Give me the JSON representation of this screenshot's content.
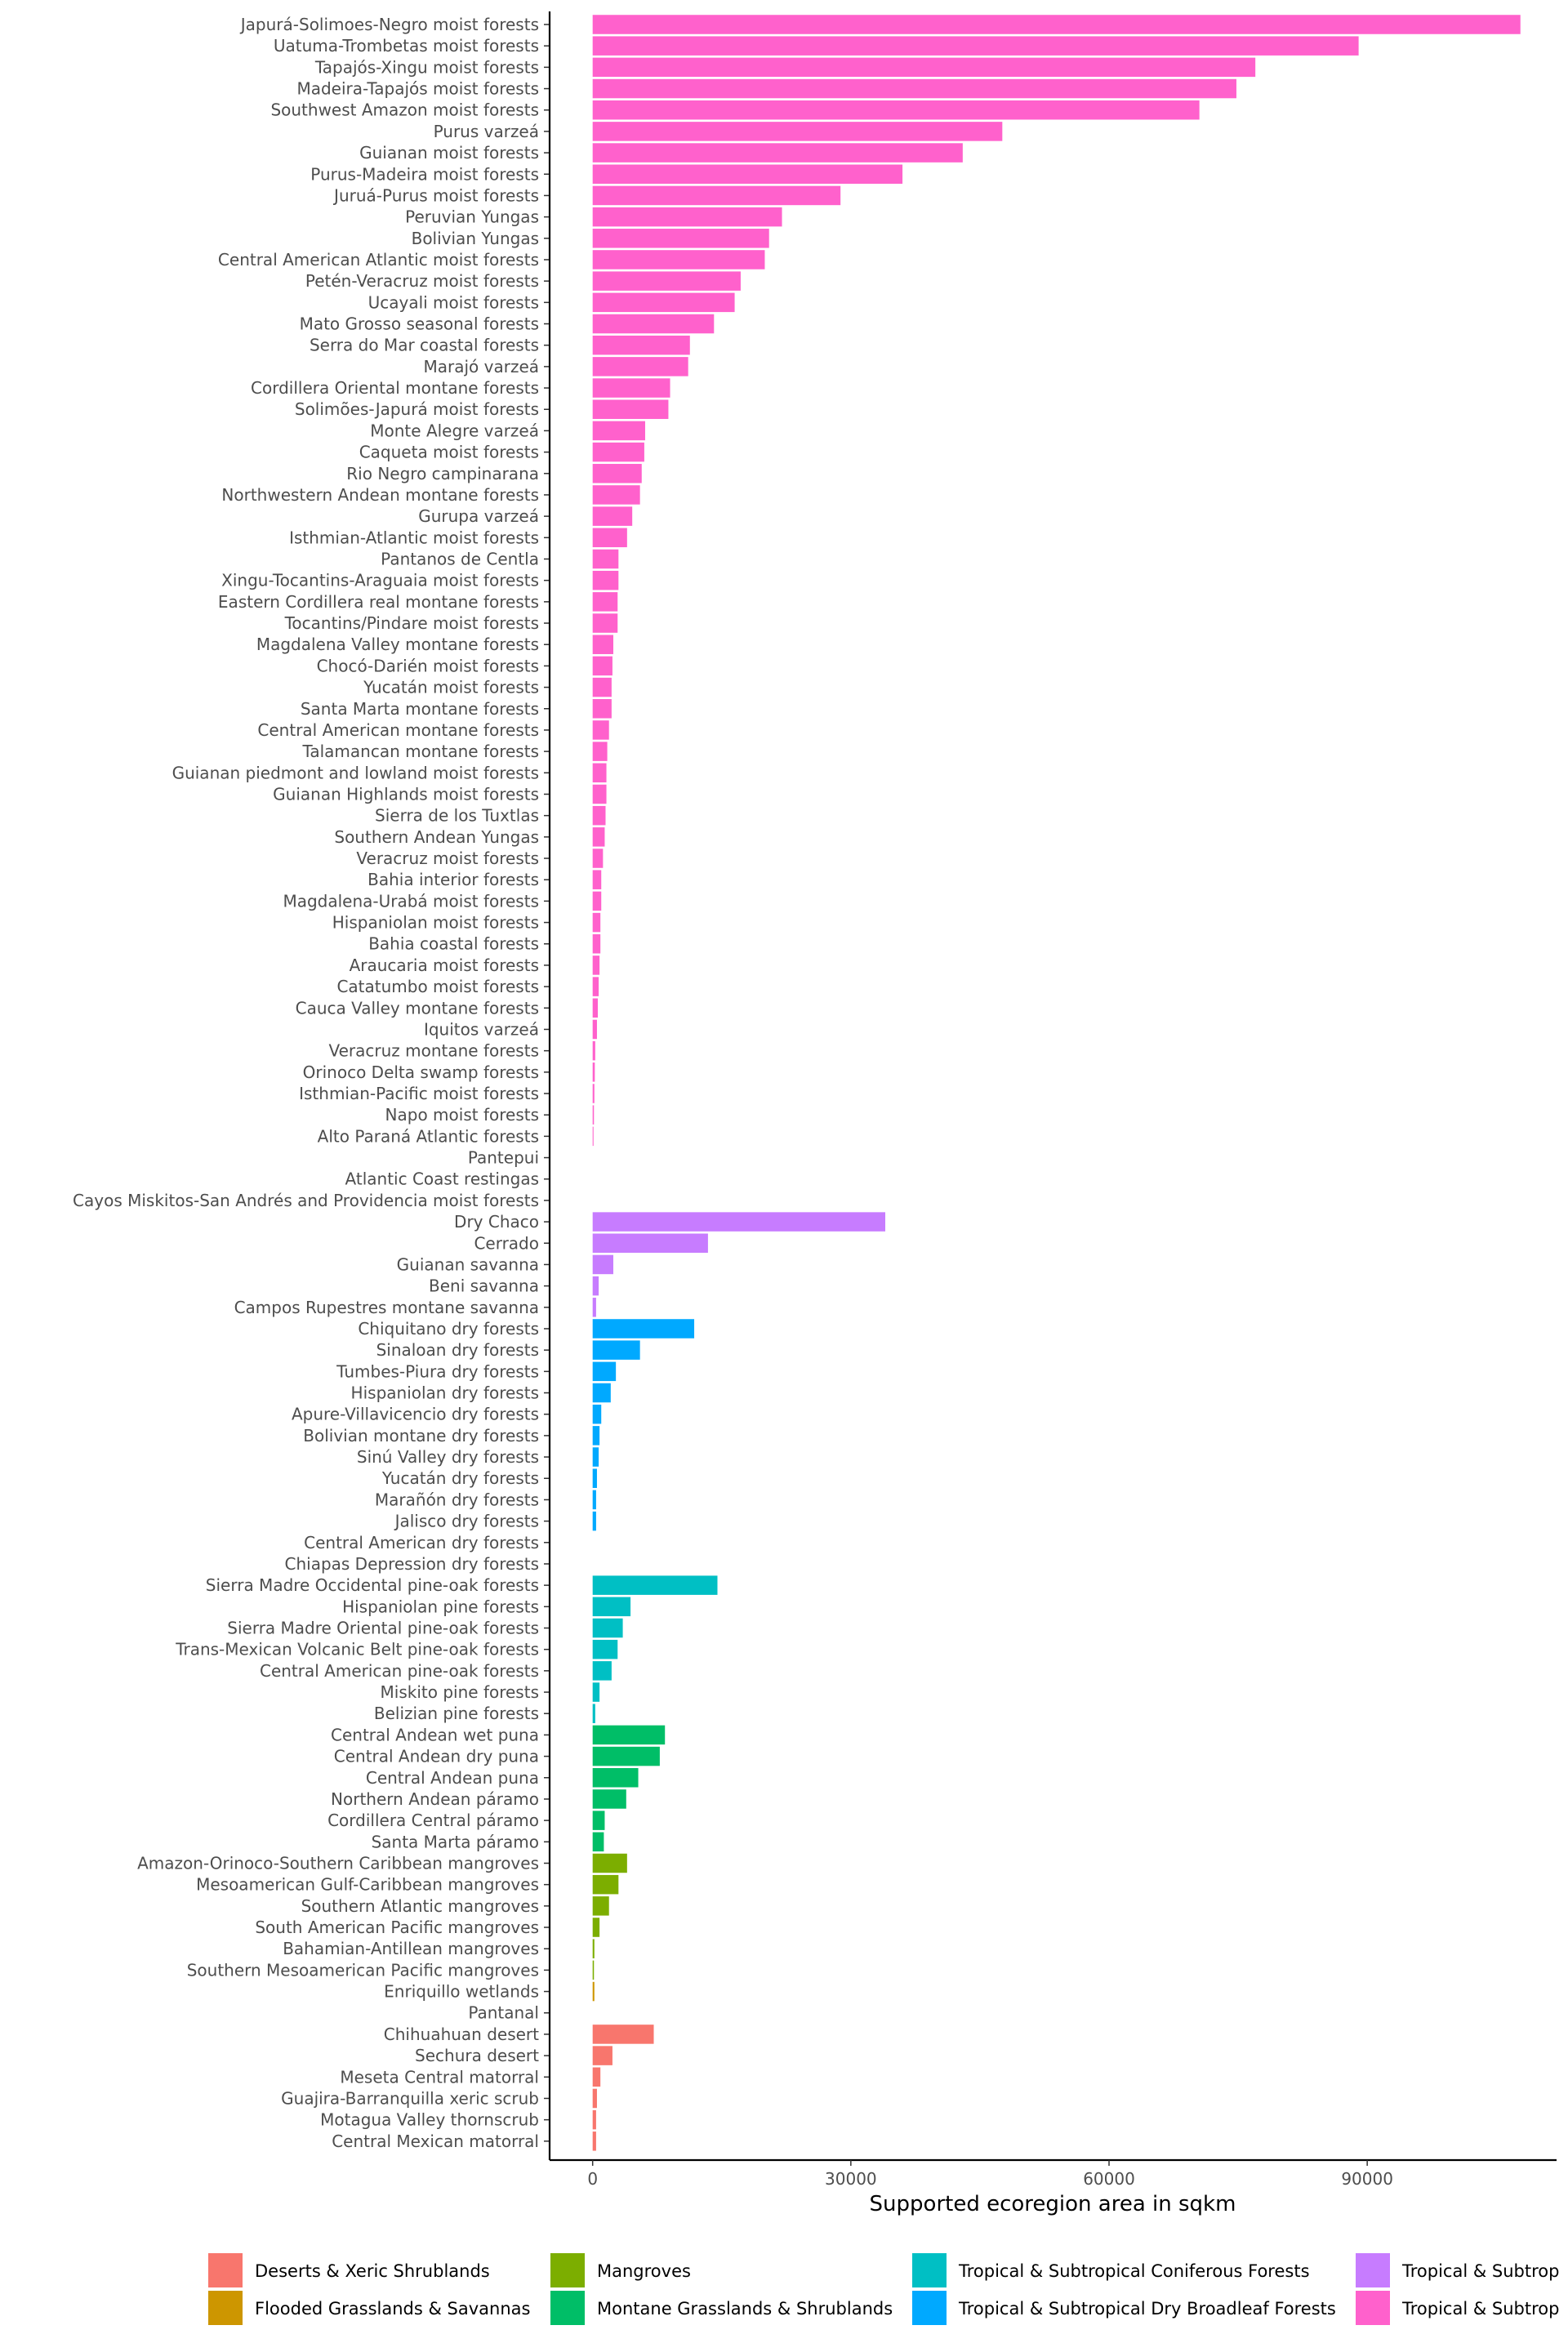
{
  "chart_data": {
    "type": "bar",
    "orientation": "horizontal",
    "title": "",
    "xlabel": "Supported ecoregion area in sqkm",
    "ylabel": "",
    "xlim": [
      -5000,
      112000
    ],
    "xticks": [
      0,
      30000,
      60000,
      90000
    ],
    "x_tick_labels": [
      "0",
      "30000",
      "60000",
      "90000"
    ],
    "grid": false,
    "legend_position": "bottom",
    "legend": [
      {
        "name": "Deserts & Xeric Shrublands",
        "color": "#F8766D"
      },
      {
        "name": "Flooded Grasslands & Savannas",
        "color": "#CD9600"
      },
      {
        "name": "Mangroves",
        "color": "#7CAE00"
      },
      {
        "name": "Montane Grasslands & Shrublands",
        "color": "#00BE67"
      },
      {
        "name": "Tropical & Subtropical Coniferous Forests",
        "color": "#00BFC4"
      },
      {
        "name": "Tropical & Subtropical Dry Broadleaf Forests",
        "color": "#00A9FF"
      },
      {
        "name": "Tropical & Subtrop",
        "color": "#C77CFF"
      },
      {
        "name": "Tropical & Subtrop",
        "color": "#FF61CC"
      }
    ],
    "categories": [
      "Japurá-Solimoes-Negro moist forests",
      "Uatuma-Trombetas moist forests",
      "Tapajós-Xingu moist forests",
      "Madeira-Tapajós moist forests",
      "Southwest Amazon moist forests",
      "Purus varzeá",
      "Guianan moist forests",
      "Purus-Madeira moist forests",
      "Juruá-Purus moist forests",
      "Peruvian Yungas",
      "Bolivian Yungas",
      "Central American Atlantic moist forests",
      "Petén-Veracruz moist forests",
      "Ucayali moist forests",
      "Mato Grosso seasonal forests",
      "Serra do Mar coastal forests",
      "Marajó varzeá",
      "Cordillera Oriental montane forests",
      "Solimões-Japurá moist forests",
      "Monte Alegre varzeá",
      "Caqueta moist forests",
      "Rio Negro campinarana",
      "Northwestern Andean montane forests",
      "Gurupa varzeá",
      "Isthmian-Atlantic moist forests",
      "Pantanos de Centla",
      "Xingu-Tocantins-Araguaia moist forests",
      "Eastern Cordillera real montane forests",
      "Tocantins/Pindare moist forests",
      "Magdalena Valley montane forests",
      "Chocó-Darién moist forests",
      "Yucatán moist forests",
      "Santa Marta montane forests",
      "Central American montane forests",
      "Talamancan montane forests",
      "Guianan piedmont and lowland moist forests",
      "Guianan Highlands moist forests",
      "Sierra de los Tuxtlas",
      "Southern Andean Yungas",
      "Veracruz moist forests",
      "Bahia interior forests",
      "Magdalena-Urabá moist forests",
      "Hispaniolan moist forests",
      "Bahia coastal forests",
      "Araucaria moist forests",
      "Catatumbo moist forests",
      "Cauca Valley montane forests",
      "Iquitos varzeá",
      "Veracruz montane forests",
      "Orinoco Delta swamp forests",
      "Isthmian-Pacific moist forests",
      "Napo moist forests",
      "Alto Paraná Atlantic forests",
      "Pantepui",
      "Atlantic Coast restingas",
      "Cayos Miskitos-San Andrés and Providencia moist forests",
      "Dry Chaco",
      "Cerrado",
      "Guianan savanna",
      "Beni savanna",
      "Campos Rupestres montane savanna",
      "Chiquitano dry forests",
      "Sinaloan dry forests",
      "Tumbes-Piura dry forests",
      "Hispaniolan dry forests",
      "Apure-Villavicencio dry forests",
      "Bolivian montane dry forests",
      "Sinú Valley dry forests",
      "Yucatán dry forests",
      "Marañón dry forests",
      "Jalisco dry forests",
      "Central American dry forests",
      "Chiapas Depression dry forests",
      "Sierra Madre Occidental pine-oak forests",
      "Hispaniolan pine forests",
      "Sierra Madre Oriental pine-oak forests",
      "Trans-Mexican Volcanic Belt pine-oak forests",
      "Central American pine-oak forests",
      "Miskito pine forests",
      "Belizian pine forests",
      "Central Andean wet puna",
      "Central Andean dry puna",
      "Central Andean puna",
      "Northern Andean páramo",
      "Cordillera Central páramo",
      "Santa Marta páramo",
      "Amazon-Orinoco-Southern Caribbean mangroves",
      "Mesoamerican Gulf-Caribbean mangroves",
      "Southern Atlantic mangroves",
      "South American Pacific mangroves",
      "Bahamian-Antillean mangroves",
      "Southern Mesoamerican Pacific mangroves",
      "Enriquillo wetlands",
      "Pantanal",
      "Chihuahuan desert",
      "Sechura desert",
      "Meseta Central matorral",
      "Guajira-Barranquilla xeric scrub",
      "Motagua Valley thornscrub",
      "Central Mexican matorral"
    ],
    "values": [
      107800,
      89000,
      77000,
      74800,
      70500,
      47600,
      43000,
      36000,
      28800,
      22000,
      20500,
      20000,
      17200,
      16500,
      14100,
      11300,
      11100,
      9000,
      8800,
      6100,
      6000,
      5700,
      5500,
      4600,
      4000,
      3000,
      3000,
      2900,
      2900,
      2400,
      2300,
      2200,
      2200,
      1900,
      1700,
      1600,
      1600,
      1500,
      1400,
      1200,
      1000,
      1000,
      900,
      900,
      800,
      700,
      600,
      500,
      300,
      250,
      200,
      150,
      100,
      0,
      0,
      0,
      34000,
      13400,
      2400,
      700,
      400,
      11800,
      5500,
      2700,
      2100,
      1000,
      800,
      700,
      500,
      400,
      400,
      0,
      0,
      14500,
      4400,
      3500,
      2900,
      2200,
      800,
      300,
      8400,
      7800,
      5300,
      3900,
      1400,
      1300,
      4000,
      3000,
      1900,
      800,
      200,
      150,
      200,
      0,
      7100,
      2300,
      900,
      500,
      400,
      400
    ],
    "series_colors": [
      "#FF61CC",
      "#FF61CC",
      "#FF61CC",
      "#FF61CC",
      "#FF61CC",
      "#FF61CC",
      "#FF61CC",
      "#FF61CC",
      "#FF61CC",
      "#FF61CC",
      "#FF61CC",
      "#FF61CC",
      "#FF61CC",
      "#FF61CC",
      "#FF61CC",
      "#FF61CC",
      "#FF61CC",
      "#FF61CC",
      "#FF61CC",
      "#FF61CC",
      "#FF61CC",
      "#FF61CC",
      "#FF61CC",
      "#FF61CC",
      "#FF61CC",
      "#FF61CC",
      "#FF61CC",
      "#FF61CC",
      "#FF61CC",
      "#FF61CC",
      "#FF61CC",
      "#FF61CC",
      "#FF61CC",
      "#FF61CC",
      "#FF61CC",
      "#FF61CC",
      "#FF61CC",
      "#FF61CC",
      "#FF61CC",
      "#FF61CC",
      "#FF61CC",
      "#FF61CC",
      "#FF61CC",
      "#FF61CC",
      "#FF61CC",
      "#FF61CC",
      "#FF61CC",
      "#FF61CC",
      "#FF61CC",
      "#FF61CC",
      "#FF61CC",
      "#FF61CC",
      "#FF61CC",
      "#FF61CC",
      "#FF61CC",
      "#FF61CC",
      "#C77CFF",
      "#C77CFF",
      "#C77CFF",
      "#C77CFF",
      "#C77CFF",
      "#00A9FF",
      "#00A9FF",
      "#00A9FF",
      "#00A9FF",
      "#00A9FF",
      "#00A9FF",
      "#00A9FF",
      "#00A9FF",
      "#00A9FF",
      "#00A9FF",
      "#00A9FF",
      "#00A9FF",
      "#00BFC4",
      "#00BFC4",
      "#00BFC4",
      "#00BFC4",
      "#00BFC4",
      "#00BFC4",
      "#00BFC4",
      "#00BE67",
      "#00BE67",
      "#00BE67",
      "#00BE67",
      "#00BE67",
      "#00BE67",
      "#7CAE00",
      "#7CAE00",
      "#7CAE00",
      "#7CAE00",
      "#7CAE00",
      "#7CAE00",
      "#CD9600",
      "#CD9600",
      "#F8766D",
      "#F8766D",
      "#F8766D",
      "#F8766D",
      "#F8766D",
      "#F8766D"
    ]
  }
}
